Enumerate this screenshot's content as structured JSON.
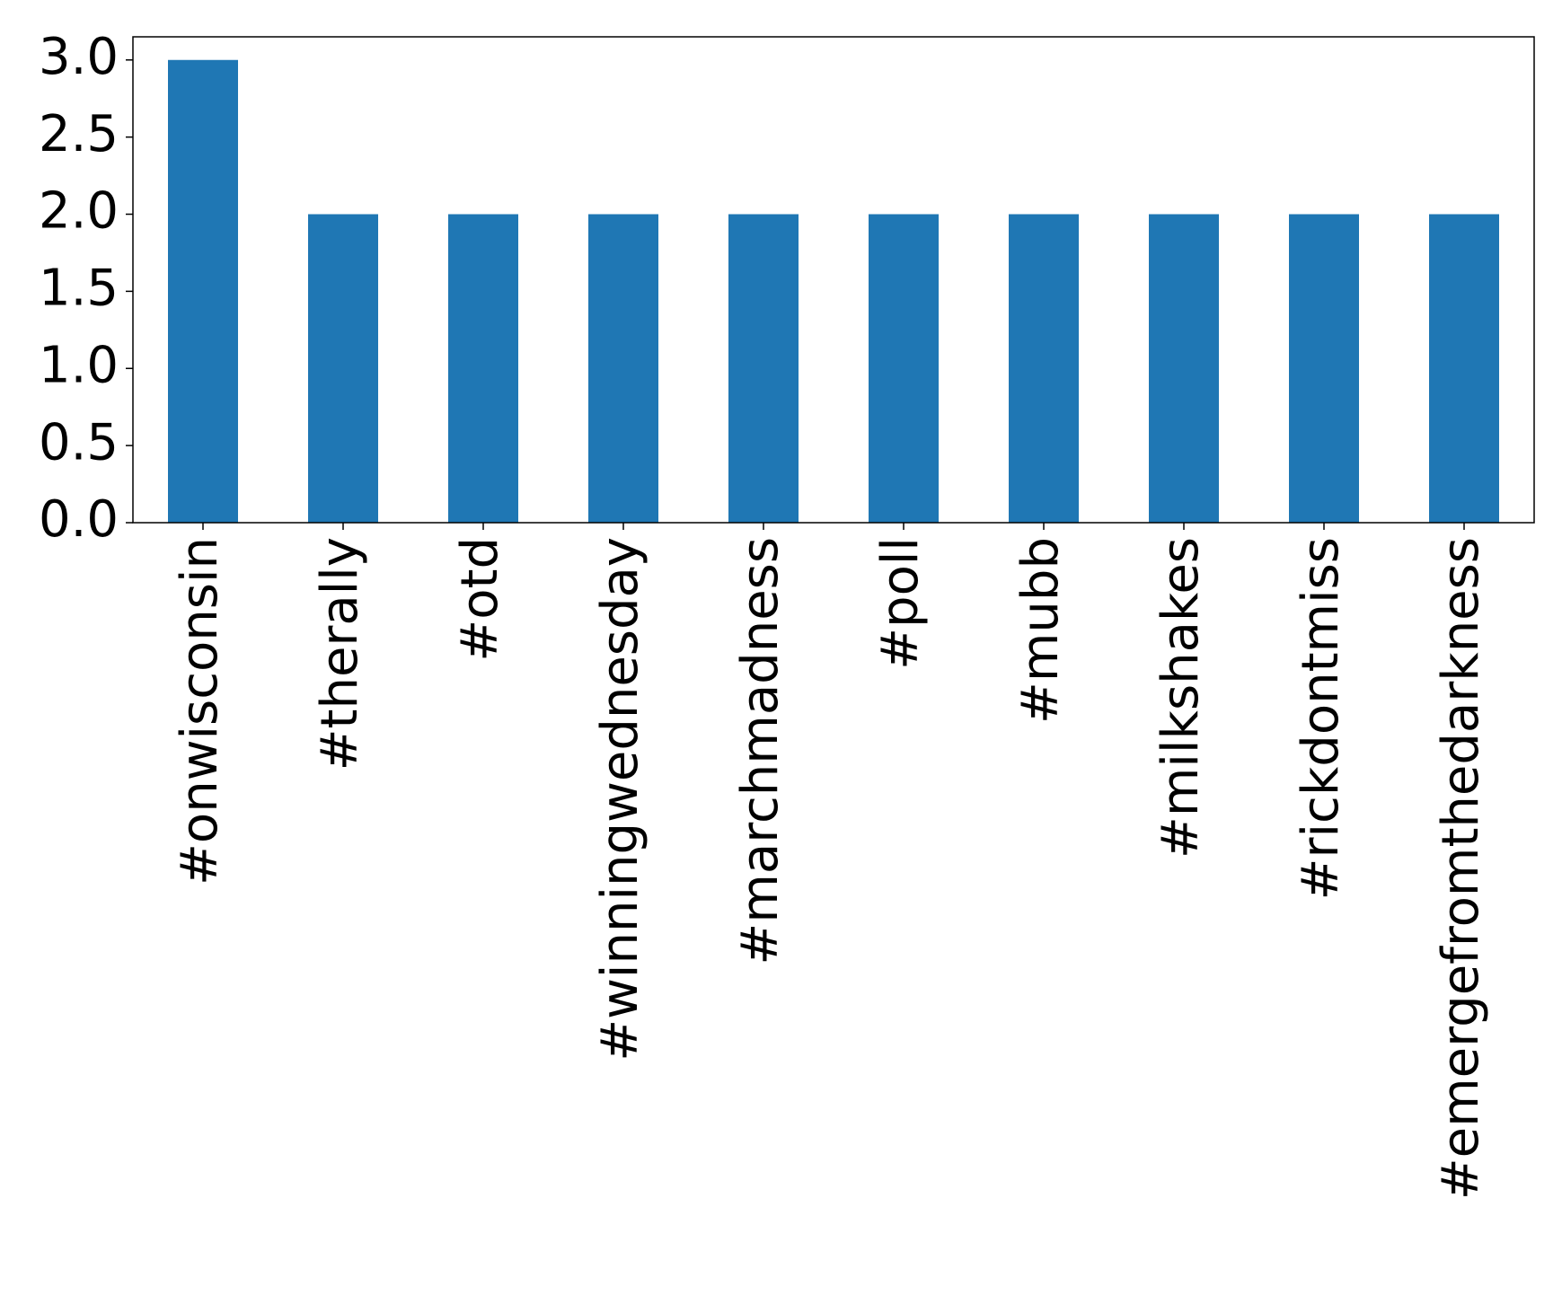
{
  "chart_data": {
    "type": "bar",
    "categories": [
      "#onwisconsin",
      "#therally",
      "#otd",
      "#winningwednesday",
      "#marchmadness",
      "#poll",
      "#mubb",
      "#milkshakes",
      "#rickdontmiss",
      "#emergefromthedarkness"
    ],
    "values": [
      3,
      2,
      2,
      2,
      2,
      2,
      2,
      2,
      2,
      2
    ],
    "color": "#1f77b4",
    "ylim": [
      0,
      3.15
    ],
    "yticks": [
      {
        "value": 0,
        "label": "0.0"
      },
      0.5,
      {
        "value": 1,
        "label": "1.0"
      },
      1.5,
      {
        "value": 2,
        "label": "2.0"
      },
      2.5,
      {
        "value": 3,
        "label": "3.0"
      }
    ],
    "grid": false
  }
}
